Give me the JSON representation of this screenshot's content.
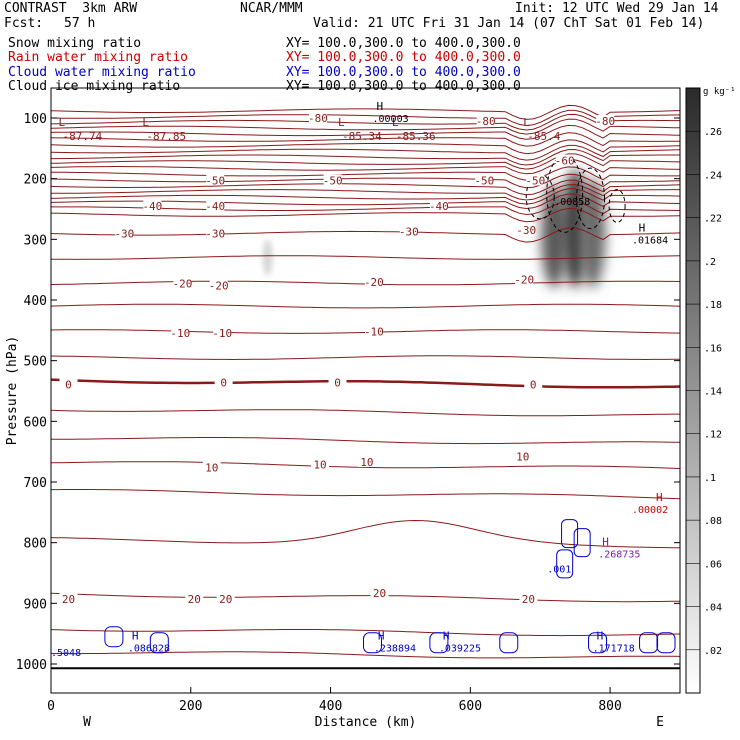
{
  "header": {
    "title_left": "CONTRAST  3km ARW",
    "title_center": "NCAR/MMM",
    "init": "Init: 12 UTC Wed 29 Jan 14",
    "fcst_label": "Fcst:",
    "fcst_value": "57 h",
    "valid": "Valid: 21 UTC Fri 31 Jan 14 (07 ChT Sat 01 Feb 14)",
    "fields": [
      {
        "name": "Snow mixing ratio",
        "xy": "XY= 100.0,300.0 to 400.0,300.0",
        "color": "#000000"
      },
      {
        "name": "Rain water mixing ratio",
        "xy": "XY= 100.0,300.0 to 400.0,300.0",
        "color": "#cc0000"
      },
      {
        "name": "Cloud water mixing ratio",
        "xy": "XY= 100.0,300.0 to 400.0,300.0",
        "color": "#0000cc"
      },
      {
        "name": "Cloud ice mixing ratio",
        "xy": "XY= 100.0,300.0 to 400.0,300.0",
        "color": "#000000"
      }
    ]
  },
  "chart_data": {
    "type": "cross-section contour",
    "xlabel": "Distance (km)",
    "ylabel": "Pressure (hPa)",
    "xlim": [
      0,
      900
    ],
    "ylim": [
      1050,
      50
    ],
    "x_ticks": [
      0,
      200,
      400,
      600,
      800
    ],
    "y_ticks": [
      100,
      200,
      300,
      400,
      500,
      600,
      700,
      800,
      900,
      1000
    ],
    "x_end_labels": {
      "left": "W",
      "right": "E"
    },
    "colorbar": {
      "units": "g kg⁻¹",
      "ticks": [
        0.02,
        0.04,
        0.06,
        0.08,
        0.1,
        0.12,
        0.14,
        0.16,
        0.18,
        0.2,
        0.22,
        0.24,
        0.26
      ],
      "tick_labels": [
        ".02",
        ".04",
        ".06",
        ".08",
        ".1",
        ".12",
        ".14",
        ".16",
        ".18",
        ".2",
        ".22",
        ".24",
        ".26"
      ],
      "max": 0.28
    },
    "temperature_contours": {
      "color": "#8b1a1a",
      "labels": [
        {
          "value": "-80",
          "x": 382,
          "p": 100
        },
        {
          "value": "-80",
          "x": 622,
          "p": 105
        },
        {
          "value": "-80",
          "x": 793,
          "p": 105
        },
        {
          "value": "-60",
          "x": 735,
          "p": 170
        },
        {
          "value": "-50",
          "x": 235,
          "p": 203
        },
        {
          "value": "-50",
          "x": 403,
          "p": 203
        },
        {
          "value": "-50",
          "x": 620,
          "p": 203
        },
        {
          "value": "-50",
          "x": 693,
          "p": 203
        },
        {
          "value": "-40",
          "x": 145,
          "p": 245
        },
        {
          "value": "-40",
          "x": 235,
          "p": 245
        },
        {
          "value": "-40",
          "x": 555,
          "p": 245
        },
        {
          "value": "-30",
          "x": 105,
          "p": 290
        },
        {
          "value": "-30",
          "x": 235,
          "p": 290
        },
        {
          "value": "-30",
          "x": 512,
          "p": 287
        },
        {
          "value": "-30",
          "x": 680,
          "p": 285
        },
        {
          "value": "-20",
          "x": 188,
          "p": 373
        },
        {
          "value": "-20",
          "x": 240,
          "p": 376
        },
        {
          "value": "-20",
          "x": 462,
          "p": 370
        },
        {
          "value": "-20",
          "x": 677,
          "p": 366
        },
        {
          "value": "-10",
          "x": 185,
          "p": 454
        },
        {
          "value": "-10",
          "x": 245,
          "p": 454
        },
        {
          "value": "-10",
          "x": 462,
          "p": 452
        },
        {
          "value": "0",
          "x": 25,
          "p": 539
        },
        {
          "value": "0",
          "x": 247,
          "p": 536
        },
        {
          "value": "0",
          "x": 410,
          "p": 536
        },
        {
          "value": "0",
          "x": 690,
          "p": 539
        },
        {
          "value": "10",
          "x": 230,
          "p": 676
        },
        {
          "value": "10",
          "x": 385,
          "p": 671
        },
        {
          "value": "10",
          "x": 452,
          "p": 667
        },
        {
          "value": "10",
          "x": 675,
          "p": 658
        },
        {
          "value": "20",
          "x": 25,
          "p": 893
        },
        {
          "value": "20",
          "x": 205,
          "p": 893
        },
        {
          "value": "20",
          "x": 250,
          "p": 893
        },
        {
          "value": "20",
          "x": 470,
          "p": 883
        },
        {
          "value": "20",
          "x": 683,
          "p": 893
        }
      ],
      "lows": [
        {
          "text": "L",
          "value": "-87.74",
          "x": 25,
          "p": 85
        },
        {
          "text": "L",
          "value": "-87.85",
          "x": 145,
          "p": 85
        },
        {
          "text": "L",
          "value": "-85.34",
          "x": 425,
          "p": 85
        },
        {
          "text": "L",
          "value": "-85.36",
          "x": 502,
          "p": 85
        },
        {
          "text": "L",
          "value": "-85.4",
          "x": 690,
          "p": 85
        }
      ]
    },
    "extrema": [
      {
        "kind": "H",
        "value": ".00003",
        "x": 460,
        "p": 90,
        "color": "#000000"
      },
      {
        "kind": "",
        "value": ".00858",
        "x": 720,
        "p": 227,
        "color": "#000000"
      },
      {
        "kind": "H",
        "value": ".01684",
        "x": 835,
        "p": 290,
        "color": "#000000"
      },
      {
        "kind": "H",
        "value": ".00002",
        "x": 860,
        "p": 735,
        "color": "#cc0000"
      },
      {
        "kind": "H",
        "value": ".268735",
        "x": 783,
        "p": 808,
        "color": "#7a1fa2"
      },
      {
        "kind": "",
        "value": ".001",
        "x": 710,
        "p": 833,
        "color": "#0000cc"
      },
      {
        "kind": "H",
        "value": ".086828",
        "x": 110,
        "p": 963,
        "color": "#0000cc"
      },
      {
        "kind": "",
        "value": ".5048",
        "x": 0,
        "p": 970,
        "color": "#0000cc"
      },
      {
        "kind": "H",
        "value": ".238894",
        "x": 462,
        "p": 963,
        "color": "#0000cc"
      },
      {
        "kind": "H",
        "value": ".039225",
        "x": 555,
        "p": 963,
        "color": "#0000cc"
      },
      {
        "kind": "H",
        "value": ".171718",
        "x": 775,
        "p": 963,
        "color": "#0000cc"
      }
    ],
    "shaded_regions": [
      {
        "name": "snow column",
        "x_center": 720,
        "p_top": 210,
        "p_bottom": 380,
        "peak": 0.24
      },
      {
        "name": "snow column",
        "x_center": 750,
        "p_top": 185,
        "p_bottom": 380,
        "peak": 0.28
      },
      {
        "name": "snow column",
        "x_center": 775,
        "p_top": 200,
        "p_bottom": 380,
        "peak": 0.22
      },
      {
        "name": "snow patch",
        "x_center": 310,
        "p_top": 300,
        "p_bottom": 360,
        "peak": 0.06
      }
    ]
  }
}
